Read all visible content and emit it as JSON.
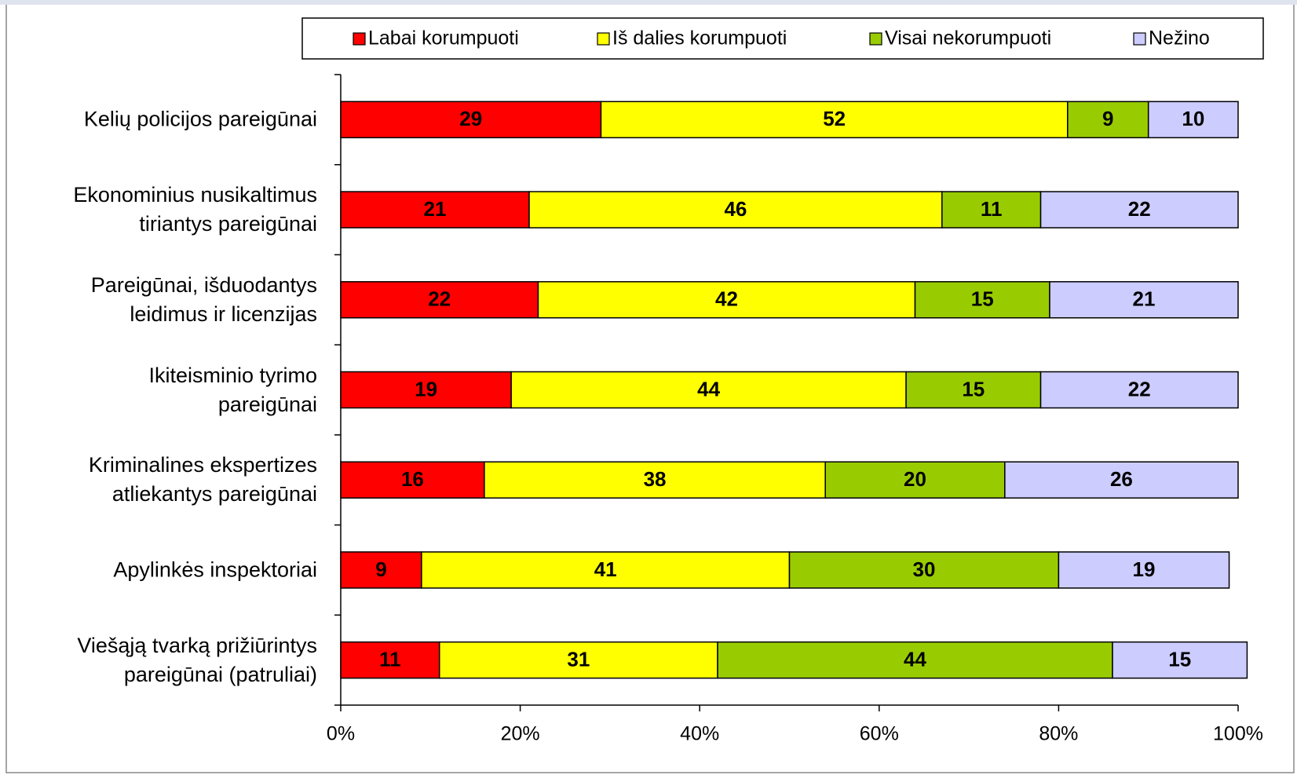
{
  "chart_data": {
    "type": "stacked-barh",
    "categories": [
      "Kelių policijos pareigūnai",
      "Ekonominius nusikaltimus\ntiriantys pareigūnai",
      "Pareigūnai, išduodantys\nleidimus ir licenzijas",
      "Ikiteisminio tyrimo\npareigūnai",
      "Kriminalines ekspertizes\natliekantys pareigūnai",
      "Apylinkės inspektoriai",
      "Viešąją tvarką prižiūrintys\npareigūnai (patruliai)"
    ],
    "series": [
      {
        "name": "Labai korumpuoti",
        "color": "#ff0000",
        "values": [
          29,
          21,
          22,
          19,
          16,
          9,
          11
        ]
      },
      {
        "name": "Iš dalies korumpuoti",
        "color": "#ffff00",
        "values": [
          52,
          46,
          42,
          44,
          38,
          41,
          31
        ]
      },
      {
        "name": "Visai nekorumpuoti",
        "color": "#99cc00",
        "values": [
          9,
          11,
          15,
          15,
          20,
          30,
          44
        ]
      },
      {
        "name": "Nežino",
        "color": "#ccccff",
        "values": [
          10,
          22,
          21,
          22,
          26,
          19,
          15
        ]
      }
    ],
    "xlim": [
      0,
      100
    ],
    "xticks": [
      {
        "value": 0,
        "label": "0%"
      },
      {
        "value": 20,
        "label": "20%"
      },
      {
        "value": 40,
        "label": "40%"
      },
      {
        "value": 60,
        "label": "60%"
      },
      {
        "value": 80,
        "label": "80%"
      },
      {
        "value": 100,
        "label": "100%"
      }
    ],
    "legend": "top"
  }
}
